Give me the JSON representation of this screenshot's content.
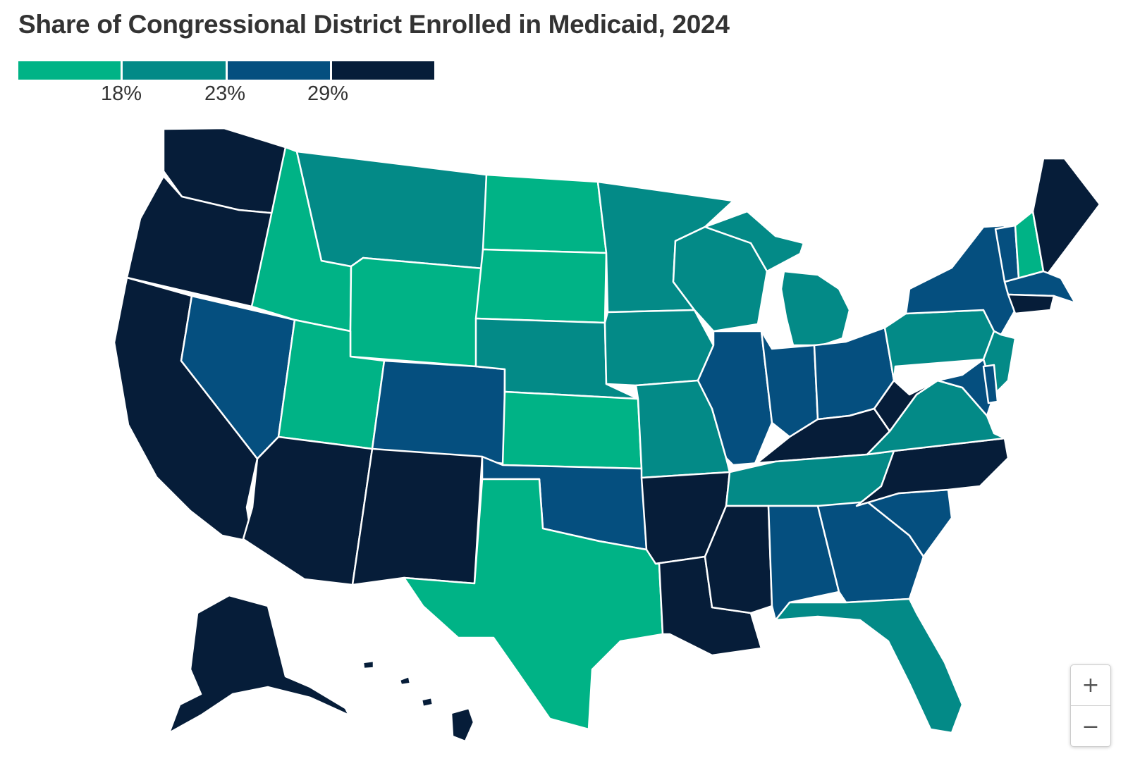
{
  "title": "Share of Congressional District Enrolled in Medicaid, 2024",
  "legend": {
    "colors": [
      "#00b386",
      "#038a87",
      "#054f7f",
      "#061d39"
    ],
    "ticks": [
      "18%",
      "23%",
      "29%"
    ]
  },
  "map": {
    "border_color": "#ffffff",
    "state_colors": [
      [
        "WA",
        "#061d39"
      ],
      [
        "OR",
        "#061d39"
      ],
      [
        "CA",
        "#061d39"
      ],
      [
        "NV",
        "#054f7f"
      ],
      [
        "ID",
        "#00b386"
      ],
      [
        "MT",
        "#038a87"
      ],
      [
        "WY",
        "#00b386"
      ],
      [
        "UT",
        "#00b386"
      ],
      [
        "AZ",
        "#061d39"
      ],
      [
        "CO",
        "#054f7f"
      ],
      [
        "NM",
        "#061d39"
      ],
      [
        "ND",
        "#00b386"
      ],
      [
        "SD",
        "#00b386"
      ],
      [
        "NE",
        "#038a87"
      ],
      [
        "KS",
        "#00b386"
      ],
      [
        "OK",
        "#054f7f"
      ],
      [
        "TX",
        "#00b386"
      ],
      [
        "MN",
        "#038a87"
      ],
      [
        "IA",
        "#038a87"
      ],
      [
        "MO",
        "#038a87"
      ],
      [
        "AR",
        "#061d39"
      ],
      [
        "LA",
        "#061d39"
      ],
      [
        "WI",
        "#038a87"
      ],
      [
        "IL",
        "#054f7f"
      ],
      [
        "MI",
        "#038a87"
      ],
      [
        "IN",
        "#054f7f"
      ],
      [
        "OH",
        "#054f7f"
      ],
      [
        "KY",
        "#061d39"
      ],
      [
        "TN",
        "#038a87"
      ],
      [
        "MS",
        "#061d39"
      ],
      [
        "AL",
        "#054f7f"
      ],
      [
        "GA",
        "#054f7f"
      ],
      [
        "FL",
        "#038a87"
      ],
      [
        "SC",
        "#054f7f"
      ],
      [
        "NC",
        "#061d39"
      ],
      [
        "VA",
        "#038a87"
      ],
      [
        "WV",
        "#061d39"
      ],
      [
        "PA",
        "#038a87"
      ],
      [
        "NY",
        "#054f7f"
      ],
      [
        "VT",
        "#054f7f"
      ],
      [
        "NH",
        "#00b386"
      ],
      [
        "ME",
        "#061d39"
      ],
      [
        "MA",
        "#054f7f"
      ],
      [
        "CT",
        "#061d39"
      ],
      [
        "NJ",
        "#038a87"
      ],
      [
        "MD",
        "#054f7f"
      ],
      [
        "DE",
        "#054f7f"
      ],
      [
        "AK",
        "#061d39"
      ],
      [
        "HI",
        "#061d39"
      ]
    ]
  },
  "zoom": {
    "in_label": "+",
    "out_label": "−"
  }
}
